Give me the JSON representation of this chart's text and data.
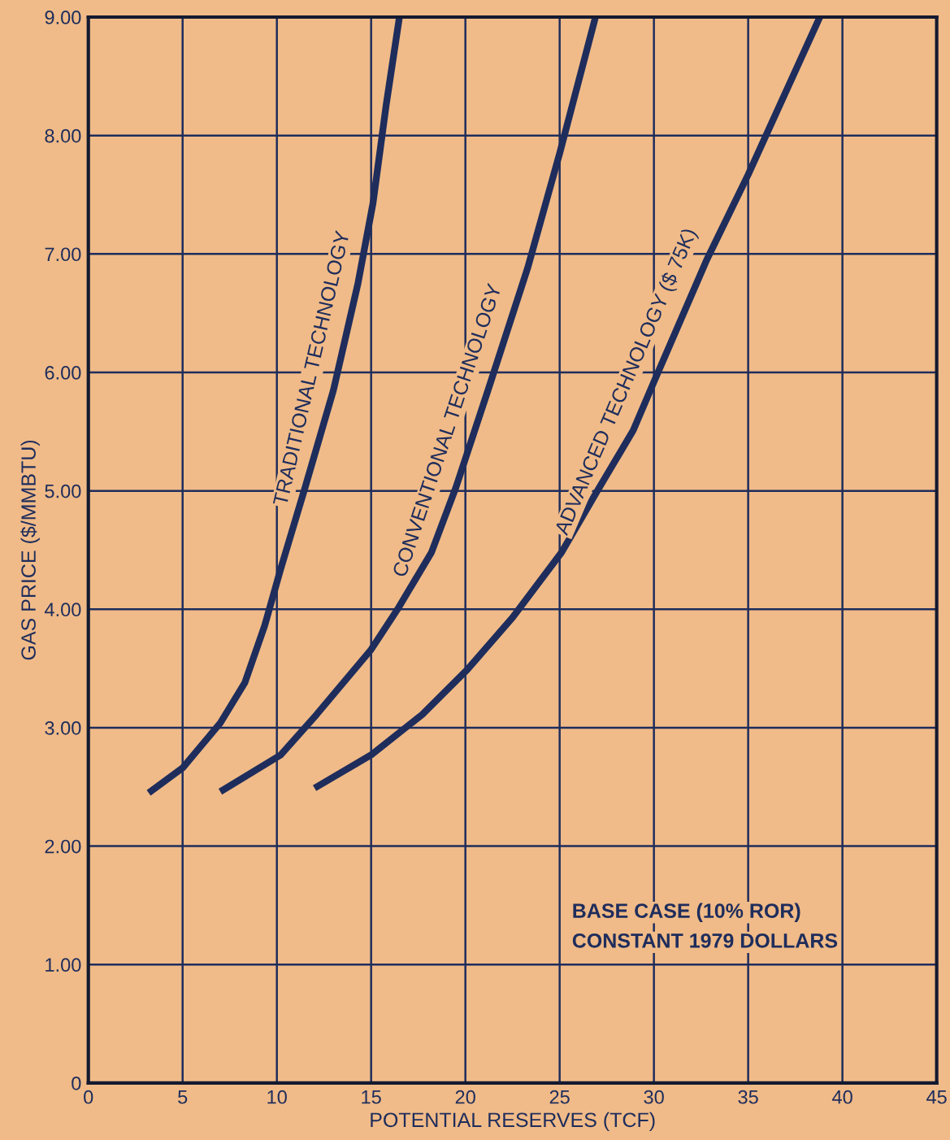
{
  "chart_data": {
    "type": "line",
    "xlabel": "POTENTIAL RESERVES (TCF)",
    "ylabel": "GAS PRICE ($/MMBTU)",
    "series": [
      {
        "name": "TRADITIONAL TECHNOLOGY",
        "color": "#1f2d5c",
        "x": [
          3.2,
          5.0,
          7.0,
          8.3,
          9.35,
          10.2,
          11.5,
          13.0,
          14.3,
          15.1,
          15.8,
          16.5
        ],
        "values": [
          2.45,
          2.66,
          3.04,
          3.38,
          3.86,
          4.34,
          5.03,
          5.85,
          6.75,
          7.43,
          8.26,
          9.0
        ]
      },
      {
        "name": "CONVENTIONAL TECHNOLOGY",
        "color": "#1f2d5c",
        "x": [
          7.0,
          10.2,
          12.1,
          15.0,
          16.4,
          18.2,
          19.5,
          21.2,
          23.3,
          25.0,
          26.9
        ],
        "values": [
          2.46,
          2.77,
          3.11,
          3.66,
          4.0,
          4.48,
          5.03,
          5.85,
          6.88,
          7.85,
          9.0
        ]
      },
      {
        "name": "ADVANCED TECHNOLOGY ($ 75K)",
        "color": "#1f2d5c",
        "x": [
          12.0,
          15.0,
          17.7,
          20.1,
          22.5,
          25.1,
          27.0,
          28.9,
          30.0,
          32.8,
          35.0,
          36.0,
          38.8
        ],
        "values": [
          2.49,
          2.77,
          3.11,
          3.49,
          3.93,
          4.48,
          5.0,
          5.51,
          5.92,
          6.95,
          7.67,
          8.02,
          9.0
        ]
      }
    ],
    "xlim": [
      0,
      45
    ],
    "ylim": [
      0,
      9
    ],
    "xticks": [
      0,
      5,
      10,
      15,
      20,
      25,
      30,
      35,
      40,
      45
    ],
    "yticks": [
      {
        "value": 0,
        "label": "0"
      },
      {
        "value": 1,
        "label": "1.00"
      },
      {
        "value": 2,
        "label": "2.00"
      },
      {
        "value": 3,
        "label": "3.00"
      },
      {
        "value": 4,
        "label": "4.00"
      },
      {
        "value": 5,
        "label": "5.00"
      },
      {
        "value": 6,
        "label": "6.00"
      },
      {
        "value": 7,
        "label": "7.00"
      },
      {
        "value": 8,
        "label": "8.00"
      },
      {
        "value": 9,
        "label": "9.00"
      }
    ],
    "grid": true,
    "marker": "none",
    "line_style": "solid",
    "legend": false,
    "annotations": [
      "BASE CASE (10% ROR)",
      "CONSTANT 1979 DOLLARS"
    ]
  }
}
